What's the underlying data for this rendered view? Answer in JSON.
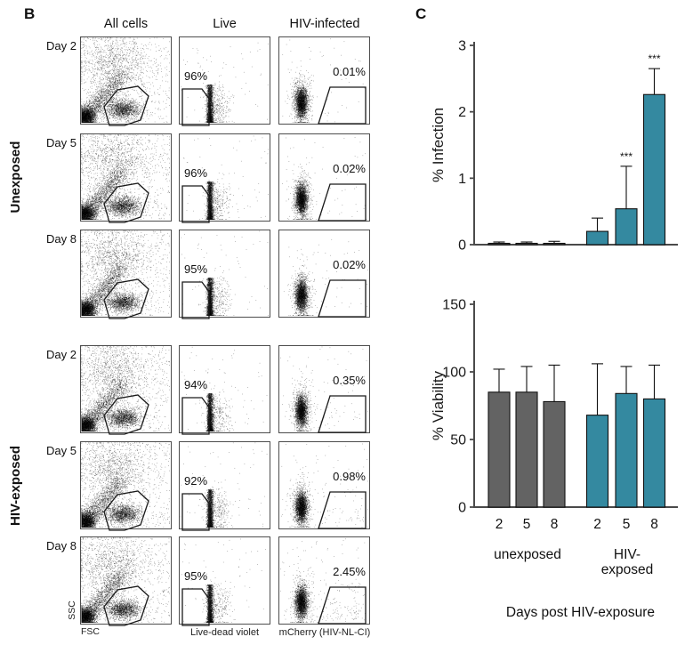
{
  "panel_b": {
    "label": "B",
    "column_headers": [
      "All cells",
      "Live",
      "HIV-infected"
    ],
    "group_labels": [
      "Unexposed",
      "HIV-exposed"
    ],
    "rows": [
      {
        "day": "Day 2",
        "group": "Unexposed",
        "live_pct": "96%",
        "infected_pct": "0.01%"
      },
      {
        "day": "Day 5",
        "group": "Unexposed",
        "live_pct": "96%",
        "infected_pct": "0.02%"
      },
      {
        "day": "Day 8",
        "group": "Unexposed",
        "live_pct": "95%",
        "infected_pct": "0.02%"
      },
      {
        "day": "Day 2",
        "group": "HIV-exposed",
        "live_pct": "94%",
        "infected_pct": "0.35%"
      },
      {
        "day": "Day 5",
        "group": "HIV-exposed",
        "live_pct": "92%",
        "infected_pct": "0.98%"
      },
      {
        "day": "Day 8",
        "group": "HIV-exposed",
        "live_pct": "95%",
        "infected_pct": "2.45%"
      }
    ],
    "axis_labels": {
      "scatter_y": "SSC",
      "scatter_x": "FSC",
      "live_x": "Live-dead violet",
      "infected_x": "mCherry (HIV-NL-CI)"
    }
  },
  "panel_c": {
    "label": "C",
    "xlabel": "Days post HIV-exposure",
    "group1_label": "unexposed",
    "group2_label_line1": "HIV-",
    "group2_label_line2": "exposed",
    "colors": {
      "unexposed": "#636363",
      "hiv_exposed": "#3489A0",
      "axis": "#4a4a4a"
    }
  },
  "chart_data": [
    {
      "type": "bar",
      "title": "",
      "ylabel": "% Infection",
      "ylim": [
        0,
        3
      ],
      "yticks": [
        0,
        1,
        2,
        3
      ],
      "categories": [
        "2",
        "5",
        "8",
        "2",
        "5",
        "8"
      ],
      "group_of_bar": [
        "unexposed",
        "unexposed",
        "unexposed",
        "hiv_exposed",
        "hiv_exposed",
        "hiv_exposed"
      ],
      "values": [
        0.02,
        0.02,
        0.02,
        0.2,
        0.54,
        2.26
      ],
      "error_up": [
        0.02,
        0.02,
        0.03,
        0.2,
        0.64,
        0.39
      ],
      "significance": [
        "",
        "",
        "",
        "",
        "***",
        "***"
      ],
      "legend": "none",
      "grid": false
    },
    {
      "type": "bar",
      "title": "",
      "ylabel": "% Viability",
      "ylim": [
        0,
        150
      ],
      "yticks": [
        0,
        50,
        100,
        150
      ],
      "categories": [
        "2",
        "5",
        "8",
        "2",
        "5",
        "8"
      ],
      "group_of_bar": [
        "unexposed",
        "unexposed",
        "unexposed",
        "hiv_exposed",
        "hiv_exposed",
        "hiv_exposed"
      ],
      "values": [
        85,
        85,
        78,
        68,
        84,
        80
      ],
      "error_up": [
        17,
        19,
        27,
        38,
        20,
        25
      ],
      "significance": [
        "",
        "",
        "",
        "",
        "",
        ""
      ],
      "legend": "none",
      "grid": false
    }
  ]
}
